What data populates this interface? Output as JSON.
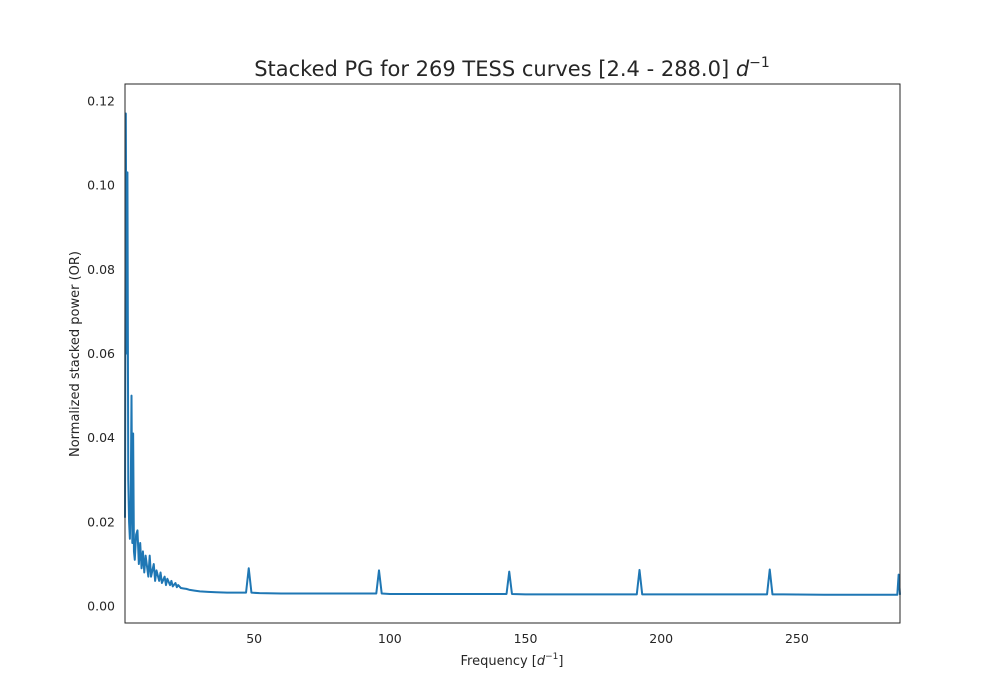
{
  "chart_data": {
    "type": "line",
    "title": "Stacked PG for 269 TESS curves [2.4 - 288.0]",
    "title_unit_base": "d",
    "title_unit_exp": "−1",
    "xlabel": "Frequency [",
    "xlabel_unit_base": "d",
    "xlabel_unit_exp": "−1",
    "xlabel_suffix": "]",
    "ylabel": "Normalized stacked power (OR)",
    "xlim": [
      2.4,
      288.0
    ],
    "ylim": [
      -0.004,
      0.124
    ],
    "xticks": [
      50,
      100,
      150,
      200,
      250
    ],
    "xtick_labels": [
      "50",
      "100",
      "150",
      "200",
      "250"
    ],
    "yticks": [
      0.0,
      0.02,
      0.04,
      0.06,
      0.08,
      0.1,
      0.12
    ],
    "ytick_labels": [
      "0.00",
      "0.02",
      "0.04",
      "0.06",
      "0.08",
      "0.10",
      "0.12"
    ],
    "grid": false,
    "line_color": "#1f77b4",
    "series": [
      {
        "x": [
          2.4,
          2.7,
          3.0,
          3.3,
          3.6,
          3.9,
          4.2,
          4.5,
          4.8,
          5.1,
          5.4,
          5.7,
          6.0,
          6.5,
          7.0,
          7.5,
          8.0,
          8.5,
          9.0,
          9.5,
          10.0,
          11.0,
          11.5,
          12.0,
          13.0,
          13.5,
          14.0,
          15.0,
          15.5,
          16.0,
          17.0,
          17.5,
          18.0,
          19.0,
          19.5,
          20.0,
          21.0,
          21.5,
          22.0,
          23.0,
          24.0,
          25.0,
          26.0,
          28.0,
          30.0,
          33.0,
          36.0,
          40.0,
          44.0,
          47.0,
          48.0,
          49.0,
          52.0,
          60.0,
          70.0,
          80.0,
          90.0,
          95.0,
          96.0,
          97.0,
          100.0,
          120.0,
          140.0,
          143.0,
          144.0,
          145.0,
          150.0,
          170.0,
          190.0,
          191.0,
          192.0,
          193.0,
          200.0,
          220.0,
          238.0,
          239.0,
          240.0,
          241.0,
          245.0,
          260.0,
          280.0,
          287.0,
          287.5,
          288.0
        ],
        "y": [
          0.021,
          0.117,
          0.06,
          0.103,
          0.03,
          0.02,
          0.016,
          0.025,
          0.05,
          0.015,
          0.041,
          0.013,
          0.011,
          0.017,
          0.018,
          0.01,
          0.015,
          0.009,
          0.013,
          0.008,
          0.012,
          0.007,
          0.012,
          0.007,
          0.01,
          0.006,
          0.0085,
          0.006,
          0.008,
          0.0055,
          0.007,
          0.005,
          0.0065,
          0.005,
          0.006,
          0.0047,
          0.0055,
          0.0045,
          0.005,
          0.0043,
          0.0042,
          0.0041,
          0.0039,
          0.0037,
          0.0035,
          0.0034,
          0.0033,
          0.0032,
          0.0032,
          0.0032,
          0.009,
          0.0032,
          0.0031,
          0.003,
          0.003,
          0.003,
          0.003,
          0.003,
          0.0085,
          0.003,
          0.0029,
          0.0029,
          0.0029,
          0.0029,
          0.0082,
          0.0029,
          0.0028,
          0.0028,
          0.0028,
          0.0028,
          0.0086,
          0.0028,
          0.0028,
          0.0028,
          0.0028,
          0.0028,
          0.0087,
          0.0028,
          0.0028,
          0.0027,
          0.0027,
          0.0027,
          0.0075,
          0.0027
        ]
      }
    ]
  }
}
